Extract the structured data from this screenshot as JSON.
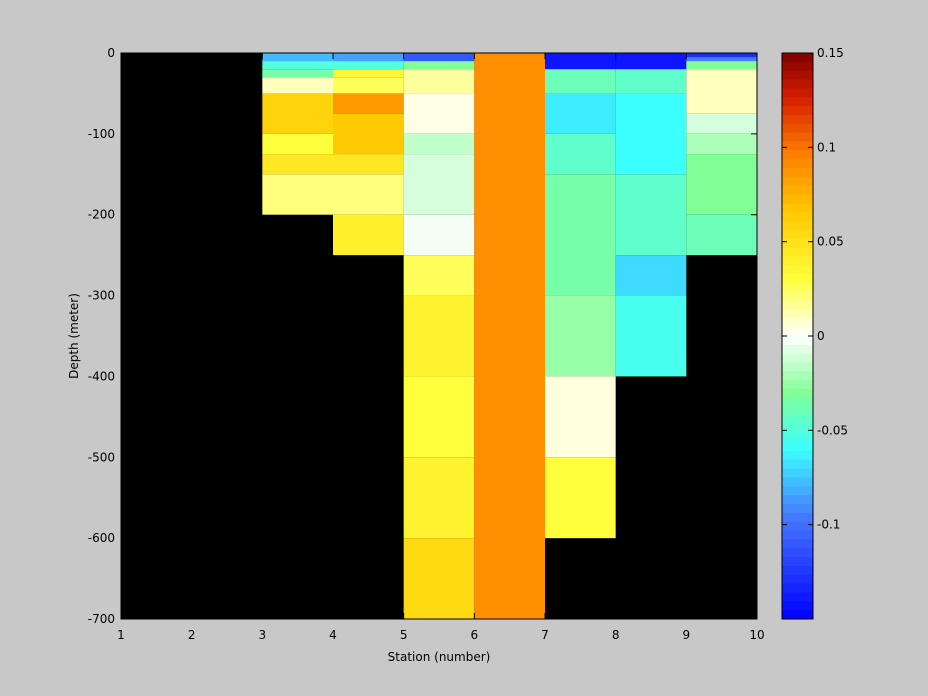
{
  "chart_data": {
    "type": "heatmap",
    "xlabel": "Station (number)",
    "ylabel": "Depth (meter)",
    "xlim": [
      1,
      10
    ],
    "ylim": [
      -700,
      0
    ],
    "xticks": [
      1,
      2,
      3,
      4,
      5,
      6,
      7,
      8,
      9,
      10
    ],
    "yticks": [
      0,
      -100,
      -200,
      -300,
      -400,
      -500,
      -600,
      -700
    ],
    "background": "#000000",
    "colorbar": {
      "clim": [
        -0.15,
        0.15
      ],
      "ticks": [
        0.15,
        0.1,
        0.05,
        0,
        -0.05,
        -0.1
      ],
      "tick_labels": [
        "0.15",
        "0.1",
        "0.05",
        "0",
        "-0.05",
        "-0.1"
      ],
      "colormap": "jet-white-center"
    },
    "columns": [
      {
        "x": [
          3,
          4
        ],
        "cells": [
          {
            "top": 0,
            "bottom": -10,
            "value": -0.078
          },
          {
            "top": -10,
            "bottom": -20,
            "value": -0.05
          },
          {
            "top": -20,
            "bottom": -30,
            "value": -0.035
          },
          {
            "top": -30,
            "bottom": -50,
            "value": 0.01
          },
          {
            "top": -50,
            "bottom": -100,
            "value": 0.058
          },
          {
            "top": -100,
            "bottom": -125,
            "value": 0.03
          },
          {
            "top": -125,
            "bottom": -150,
            "value": 0.045
          },
          {
            "top": -150,
            "bottom": -200,
            "value": 0.02
          }
        ]
      },
      {
        "x": [
          4,
          5
        ],
        "cells": [
          {
            "top": 0,
            "bottom": -10,
            "value": -0.085
          },
          {
            "top": -10,
            "bottom": -20,
            "value": -0.05
          },
          {
            "top": -20,
            "bottom": -30,
            "value": 0.035
          },
          {
            "top": -30,
            "bottom": -50,
            "value": 0.025
          },
          {
            "top": -50,
            "bottom": -75,
            "value": 0.085
          },
          {
            "top": -75,
            "bottom": -125,
            "value": 0.065
          },
          {
            "top": -125,
            "bottom": -150,
            "value": 0.045
          },
          {
            "top": -150,
            "bottom": -200,
            "value": 0.02
          },
          {
            "top": -200,
            "bottom": -250,
            "value": 0.04
          }
        ]
      },
      {
        "x": [
          5,
          6
        ],
        "cells": [
          {
            "top": 0,
            "bottom": -10,
            "value": -0.11
          },
          {
            "top": -10,
            "bottom": -20,
            "value": -0.03
          },
          {
            "top": -20,
            "bottom": -50,
            "value": 0.015
          },
          {
            "top": -50,
            "bottom": -100,
            "value": 0.004
          },
          {
            "top": -100,
            "bottom": -125,
            "value": -0.015
          },
          {
            "top": -125,
            "bottom": -200,
            "value": -0.01
          },
          {
            "top": -200,
            "bottom": -250,
            "value": -0.003
          },
          {
            "top": -250,
            "bottom": -300,
            "value": 0.025
          },
          {
            "top": -300,
            "bottom": -400,
            "value": 0.038
          },
          {
            "top": -400,
            "bottom": -500,
            "value": 0.03
          },
          {
            "top": -500,
            "bottom": -600,
            "value": 0.038
          },
          {
            "top": -600,
            "bottom": -700,
            "value": 0.055
          }
        ]
      },
      {
        "x": [
          6,
          7
        ],
        "cells": [
          {
            "top": 0,
            "bottom": -700,
            "value": 0.09
          }
        ]
      },
      {
        "x": [
          7,
          8
        ],
        "cells": [
          {
            "top": 0,
            "bottom": -20,
            "value": -0.14
          },
          {
            "top": -20,
            "bottom": -50,
            "value": -0.04
          },
          {
            "top": -50,
            "bottom": -100,
            "value": -0.065
          },
          {
            "top": -100,
            "bottom": -150,
            "value": -0.045
          },
          {
            "top": -150,
            "bottom": -300,
            "value": -0.035
          },
          {
            "top": -300,
            "bottom": -400,
            "value": -0.025
          },
          {
            "top": -400,
            "bottom": -500,
            "value": 0.005
          },
          {
            "top": -500,
            "bottom": -600,
            "value": 0.03
          }
        ]
      },
      {
        "x": [
          8,
          9
        ],
        "cells": [
          {
            "top": 0,
            "bottom": -20,
            "value": -0.14
          },
          {
            "top": -20,
            "bottom": -50,
            "value": -0.045
          },
          {
            "top": -50,
            "bottom": -150,
            "value": -0.06
          },
          {
            "top": -150,
            "bottom": -250,
            "value": -0.045
          },
          {
            "top": -250,
            "bottom": -300,
            "value": -0.07
          },
          {
            "top": -300,
            "bottom": -400,
            "value": -0.055
          }
        ]
      },
      {
        "x": [
          9,
          10
        ],
        "cells": [
          {
            "top": 0,
            "bottom": -5,
            "value": -0.13
          },
          {
            "top": -5,
            "bottom": -10,
            "value": -0.095
          },
          {
            "top": -10,
            "bottom": -20,
            "value": -0.03
          },
          {
            "top": -20,
            "bottom": -75,
            "value": 0.01
          },
          {
            "top": -75,
            "bottom": -100,
            "value": -0.01
          },
          {
            "top": -100,
            "bottom": -125,
            "value": -0.02
          },
          {
            "top": -125,
            "bottom": -200,
            "value": -0.03
          },
          {
            "top": -200,
            "bottom": -250,
            "value": -0.04
          }
        ]
      }
    ]
  }
}
